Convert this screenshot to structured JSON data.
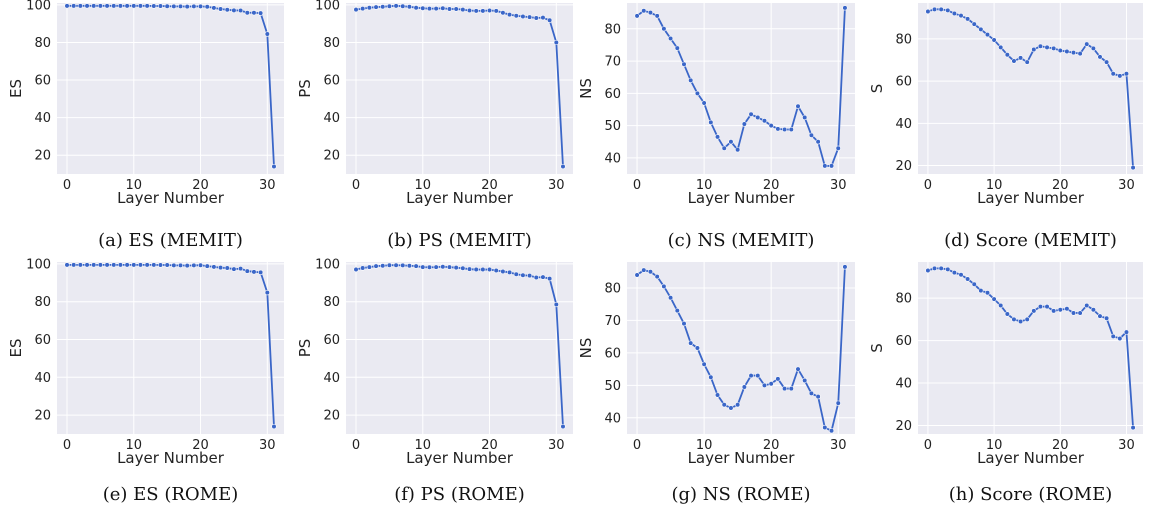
{
  "theme": {
    "plot_bg": "#eaeaf2",
    "grid": "#ffffff",
    "line": "#3a66c8",
    "marker": "#3a66c8"
  },
  "chart_data": [
    {
      "type": "line",
      "caption": "(a) ES (MEMIT)",
      "xlabel": "Layer Number",
      "ylabel": "ES",
      "xlim": [
        -1.5,
        32.5
      ],
      "ylim": [
        10,
        101
      ],
      "xticks": [
        0,
        10,
        20,
        30
      ],
      "yticks": [
        20,
        40,
        60,
        80,
        100
      ],
      "x": [
        0,
        1,
        2,
        3,
        4,
        5,
        6,
        7,
        8,
        9,
        10,
        11,
        12,
        13,
        14,
        15,
        16,
        17,
        18,
        19,
        20,
        21,
        22,
        23,
        24,
        25,
        26,
        27,
        28,
        29,
        30,
        31
      ],
      "series": [
        {
          "values": [
            99.5,
            99.5,
            99.5,
            99.5,
            99.5,
            99.5,
            99.5,
            99.5,
            99.5,
            99.5,
            99.5,
            99.5,
            99.5,
            99.4,
            99.4,
            99.3,
            99.2,
            99.2,
            99.1,
            99.2,
            99.2,
            99.0,
            98.4,
            97.8,
            97.4,
            97.1,
            97.0,
            95.8,
            95.8,
            95.6,
            84.5,
            14.0
          ]
        }
      ]
    },
    {
      "type": "line",
      "caption": "(b) PS (MEMIT)",
      "xlabel": "Layer Number",
      "ylabel": "PS",
      "xlim": [
        -1.5,
        32.5
      ],
      "ylim": [
        10,
        101
      ],
      "xticks": [
        0,
        10,
        20,
        30
      ],
      "yticks": [
        20,
        40,
        60,
        80,
        100
      ],
      "x": [
        0,
        1,
        2,
        3,
        4,
        5,
        6,
        7,
        8,
        9,
        10,
        11,
        12,
        13,
        14,
        15,
        16,
        17,
        18,
        19,
        20,
        21,
        22,
        23,
        24,
        25,
        26,
        27,
        28,
        29,
        30,
        31
      ],
      "series": [
        {
          "values": [
            97.5,
            98.0,
            98.5,
            98.8,
            99.0,
            99.3,
            99.5,
            99.3,
            99.0,
            98.5,
            98.2,
            98.0,
            98.0,
            98.2,
            97.8,
            97.8,
            97.5,
            97.0,
            96.8,
            96.8,
            97.0,
            96.8,
            95.8,
            94.8,
            94.2,
            93.8,
            93.5,
            93.0,
            93.2,
            91.8,
            80.0,
            14.0
          ]
        }
      ]
    },
    {
      "type": "line",
      "caption": "(c) NS (MEMIT)",
      "xlabel": "Layer Number",
      "ylabel": "NS",
      "xlim": [
        -1.5,
        32.5
      ],
      "ylim": [
        35,
        88
      ],
      "xticks": [
        0,
        10,
        20,
        30
      ],
      "yticks": [
        40,
        50,
        60,
        70,
        80
      ],
      "x": [
        0,
        1,
        2,
        3,
        4,
        5,
        6,
        7,
        8,
        9,
        10,
        11,
        12,
        13,
        14,
        15,
        16,
        17,
        18,
        19,
        20,
        21,
        22,
        23,
        24,
        25,
        26,
        27,
        28,
        29,
        30,
        31
      ],
      "series": [
        {
          "values": [
            84.0,
            85.6,
            85.0,
            84.0,
            80.0,
            77.0,
            74.0,
            69.0,
            64.0,
            60.0,
            57.0,
            51.0,
            46.5,
            43.0,
            45.0,
            42.5,
            50.5,
            53.5,
            52.5,
            51.5,
            50.0,
            49.0,
            48.8,
            48.8,
            56.0,
            52.5,
            47.0,
            45.0,
            37.5,
            37.5,
            43.0,
            86.5
          ]
        }
      ]
    },
    {
      "type": "line",
      "caption": "(d) Score (MEMIT)",
      "xlabel": "Layer Number",
      "ylabel": "S",
      "xlim": [
        -1.5,
        32.5
      ],
      "ylim": [
        16,
        97
      ],
      "xticks": [
        0,
        10,
        20,
        30
      ],
      "yticks": [
        20,
        40,
        60,
        80
      ],
      "x": [
        0,
        1,
        2,
        3,
        4,
        5,
        6,
        7,
        8,
        9,
        10,
        11,
        12,
        13,
        14,
        15,
        16,
        17,
        18,
        19,
        20,
        21,
        22,
        23,
        24,
        25,
        26,
        27,
        28,
        29,
        30,
        31
      ],
      "series": [
        {
          "values": [
            93.0,
            94.0,
            94.0,
            93.5,
            92.0,
            91.0,
            89.5,
            87.0,
            84.5,
            82.0,
            79.5,
            76.0,
            72.5,
            69.5,
            71.0,
            69.0,
            75.0,
            76.5,
            76.0,
            75.5,
            74.5,
            74.0,
            73.5,
            73.0,
            77.5,
            75.5,
            71.5,
            69.0,
            63.5,
            62.5,
            63.5,
            19.0
          ]
        }
      ]
    },
    {
      "type": "line",
      "caption": "(e) ES (ROME)",
      "xlabel": "Layer Number",
      "ylabel": "ES",
      "xlim": [
        -1.5,
        32.5
      ],
      "ylim": [
        10,
        101
      ],
      "xticks": [
        0,
        10,
        20,
        30
      ],
      "yticks": [
        20,
        40,
        60,
        80,
        100
      ],
      "x": [
        0,
        1,
        2,
        3,
        4,
        5,
        6,
        7,
        8,
        9,
        10,
        11,
        12,
        13,
        14,
        15,
        16,
        17,
        18,
        19,
        20,
        21,
        22,
        23,
        24,
        25,
        26,
        27,
        28,
        29,
        30,
        31
      ],
      "series": [
        {
          "values": [
            99.5,
            99.5,
            99.5,
            99.5,
            99.5,
            99.5,
            99.5,
            99.5,
            99.5,
            99.5,
            99.5,
            99.5,
            99.5,
            99.5,
            99.4,
            99.4,
            99.2,
            99.2,
            99.1,
            99.2,
            99.3,
            98.8,
            98.4,
            98.0,
            97.8,
            97.2,
            97.5,
            96.2,
            95.8,
            95.5,
            84.8,
            14.0
          ]
        }
      ]
    },
    {
      "type": "line",
      "caption": "(f) PS (ROME)",
      "xlabel": "Layer Number",
      "ylabel": "PS",
      "xlim": [
        -1.5,
        32.5
      ],
      "ylim": [
        10,
        101
      ],
      "xticks": [
        0,
        10,
        20,
        30
      ],
      "yticks": [
        20,
        40,
        60,
        80,
        100
      ],
      "x": [
        0,
        1,
        2,
        3,
        4,
        5,
        6,
        7,
        8,
        9,
        10,
        11,
        12,
        13,
        14,
        15,
        16,
        17,
        18,
        19,
        20,
        21,
        22,
        23,
        24,
        25,
        26,
        27,
        28,
        29,
        30,
        31
      ],
      "series": [
        {
          "values": [
            97.0,
            97.8,
            98.3,
            98.8,
            99.0,
            99.3,
            99.3,
            99.2,
            99.0,
            98.8,
            98.3,
            98.2,
            98.3,
            98.5,
            98.3,
            98.0,
            97.7,
            97.2,
            97.0,
            97.0,
            97.0,
            96.5,
            96.0,
            95.5,
            94.5,
            94.0,
            93.8,
            92.8,
            93.0,
            92.2,
            78.5,
            14.0
          ]
        }
      ]
    },
    {
      "type": "line",
      "caption": "(g) NS (ROME)",
      "xlabel": "Layer Number",
      "ylabel": "NS",
      "xlim": [
        -1.5,
        32.5
      ],
      "ylim": [
        35,
        88
      ],
      "xticks": [
        0,
        10,
        20,
        30
      ],
      "yticks": [
        40,
        50,
        60,
        70,
        80
      ],
      "x": [
        0,
        1,
        2,
        3,
        4,
        5,
        6,
        7,
        8,
        9,
        10,
        11,
        12,
        13,
        14,
        15,
        16,
        17,
        18,
        19,
        20,
        21,
        22,
        23,
        24,
        25,
        26,
        27,
        28,
        29,
        30,
        31
      ],
      "series": [
        {
          "values": [
            84.0,
            85.5,
            85.0,
            83.5,
            80.5,
            77.0,
            73.0,
            69.0,
            63.0,
            61.5,
            56.5,
            52.5,
            47.0,
            44.0,
            43.0,
            44.0,
            49.5,
            53.0,
            53.0,
            50.0,
            50.5,
            52.0,
            49.0,
            49.0,
            55.0,
            51.5,
            47.5,
            46.5,
            37.0,
            36.0,
            44.5,
            86.5
          ]
        }
      ]
    },
    {
      "type": "line",
      "caption": "(h) Score (ROME)",
      "xlabel": "Layer Number",
      "ylabel": "S",
      "xlim": [
        -1.5,
        32.5
      ],
      "ylim": [
        16,
        97
      ],
      "xticks": [
        0,
        10,
        20,
        30
      ],
      "yticks": [
        20,
        40,
        60,
        80
      ],
      "x": [
        0,
        1,
        2,
        3,
        4,
        5,
        6,
        7,
        8,
        9,
        10,
        11,
        12,
        13,
        14,
        15,
        16,
        17,
        18,
        19,
        20,
        21,
        22,
        23,
        24,
        25,
        26,
        27,
        28,
        29,
        30,
        31
      ],
      "series": [
        {
          "values": [
            93.0,
            94.0,
            94.0,
            93.5,
            92.0,
            91.0,
            89.0,
            86.5,
            83.5,
            82.5,
            79.5,
            76.5,
            72.5,
            70.0,
            69.0,
            70.0,
            74.0,
            76.0,
            76.0,
            74.0,
            74.5,
            75.0,
            73.0,
            73.0,
            76.5,
            74.5,
            71.5,
            70.5,
            62.0,
            61.0,
            64.0,
            19.0
          ]
        }
      ]
    }
  ]
}
